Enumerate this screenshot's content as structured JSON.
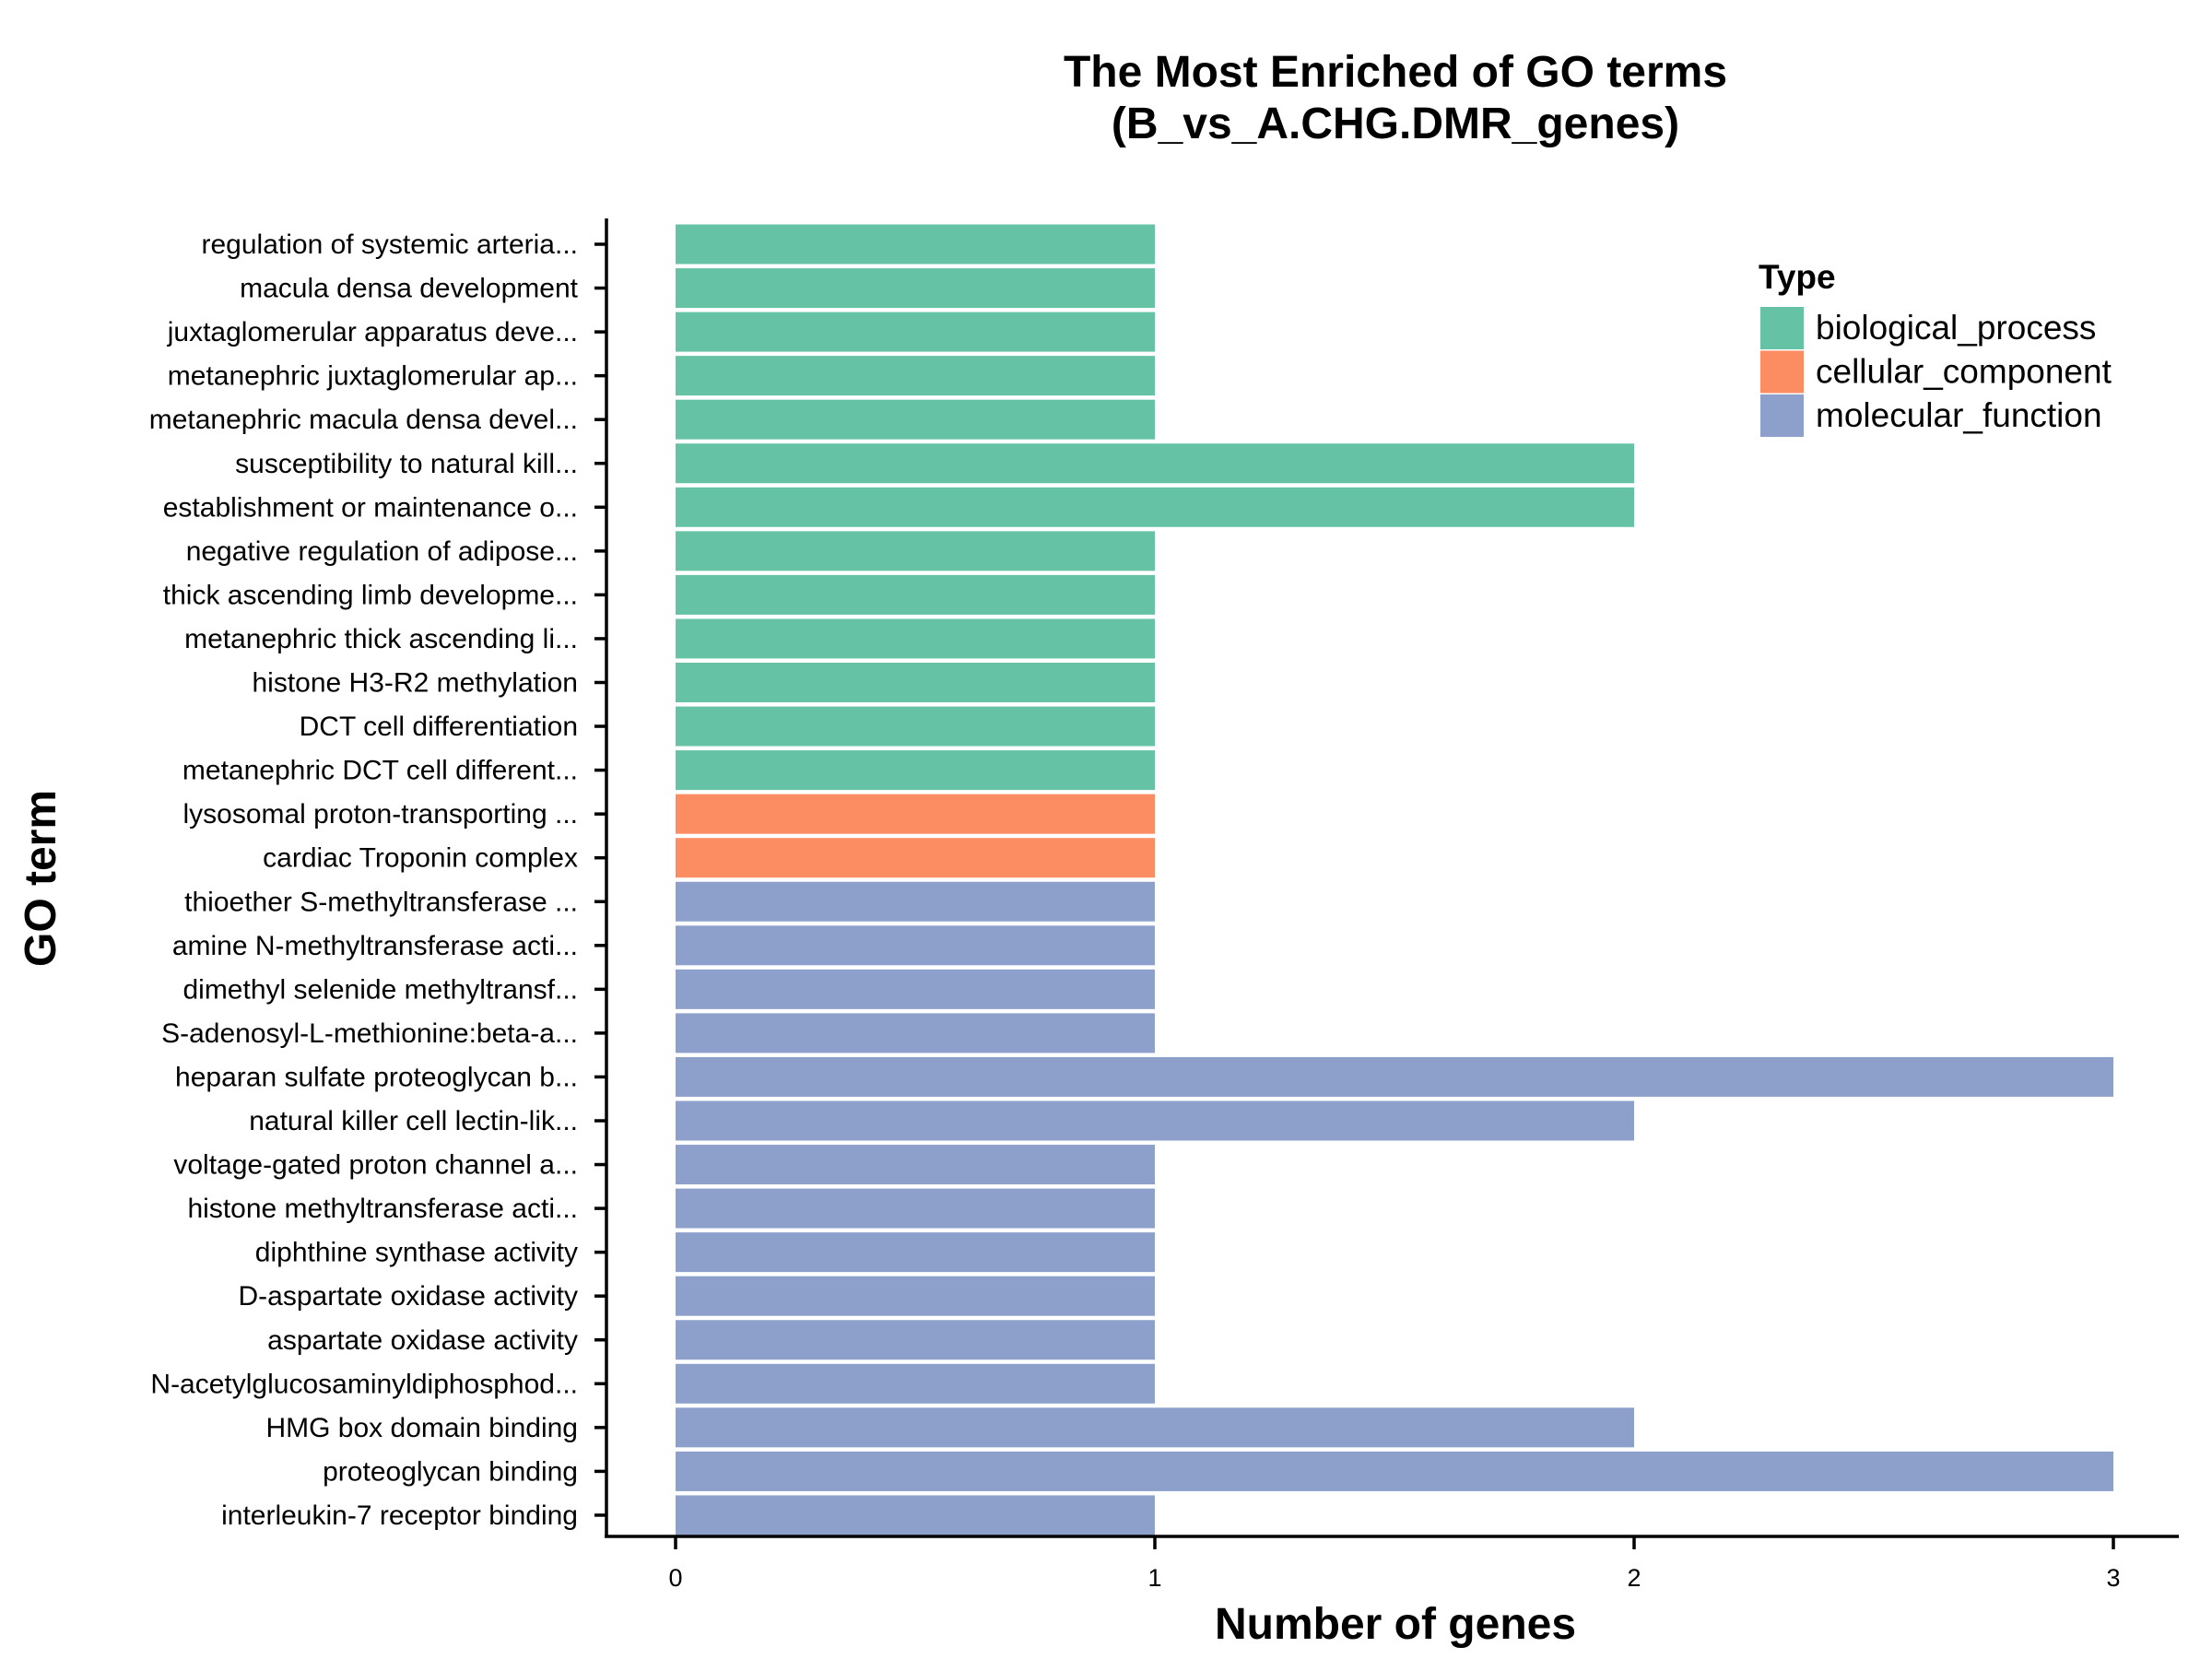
{
  "chart_data": {
    "type": "bar",
    "orientation": "horizontal",
    "title_line1": "The Most Enriched of GO terms",
    "title_line2": "(B_vs_A.CHG.DMR_genes)",
    "xlabel": "Number of genes",
    "ylabel": "GO term",
    "xlim": [
      0,
      3
    ],
    "xticks": [
      "0",
      "1",
      "2",
      "3"
    ],
    "grid": false,
    "legend": {
      "title": "Type",
      "placement": "top-right",
      "entries": [
        {
          "name": "biological_process",
          "color": "#66c2a5"
        },
        {
          "name": "cellular_component",
          "color": "#fc8d62"
        },
        {
          "name": "molecular_function",
          "color": "#8da0cb"
        }
      ]
    },
    "bars": [
      {
        "label": "regulation of systemic arteria...",
        "value": 1,
        "type": "biological_process"
      },
      {
        "label": "macula densa development",
        "value": 1,
        "type": "biological_process"
      },
      {
        "label": "juxtaglomerular apparatus deve...",
        "value": 1,
        "type": "biological_process"
      },
      {
        "label": "metanephric juxtaglomerular ap...",
        "value": 1,
        "type": "biological_process"
      },
      {
        "label": "metanephric macula densa devel...",
        "value": 1,
        "type": "biological_process"
      },
      {
        "label": "susceptibility to natural kill...",
        "value": 2,
        "type": "biological_process"
      },
      {
        "label": "establishment or maintenance o...",
        "value": 2,
        "type": "biological_process"
      },
      {
        "label": "negative regulation of adipose...",
        "value": 1,
        "type": "biological_process"
      },
      {
        "label": "thick ascending limb developme...",
        "value": 1,
        "type": "biological_process"
      },
      {
        "label": "metanephric thick ascending li...",
        "value": 1,
        "type": "biological_process"
      },
      {
        "label": "histone H3-R2 methylation",
        "value": 1,
        "type": "biological_process"
      },
      {
        "label": "DCT cell differentiation",
        "value": 1,
        "type": "biological_process"
      },
      {
        "label": "metanephric DCT cell different...",
        "value": 1,
        "type": "biological_process"
      },
      {
        "label": "lysosomal proton-transporting ...",
        "value": 1,
        "type": "cellular_component"
      },
      {
        "label": "cardiac Troponin complex",
        "value": 1,
        "type": "cellular_component"
      },
      {
        "label": "thioether S-methyltransferase ...",
        "value": 1,
        "type": "molecular_function"
      },
      {
        "label": "amine N-methyltransferase acti...",
        "value": 1,
        "type": "molecular_function"
      },
      {
        "label": "dimethyl selenide methyltransf...",
        "value": 1,
        "type": "molecular_function"
      },
      {
        "label": "S-adenosyl-L-methionine:beta-a...",
        "value": 1,
        "type": "molecular_function"
      },
      {
        "label": "heparan sulfate proteoglycan b...",
        "value": 3,
        "type": "molecular_function"
      },
      {
        "label": "natural killer cell lectin-lik...",
        "value": 2,
        "type": "molecular_function"
      },
      {
        "label": "voltage-gated proton channel a...",
        "value": 1,
        "type": "molecular_function"
      },
      {
        "label": "histone methyltransferase acti...",
        "value": 1,
        "type": "molecular_function"
      },
      {
        "label": "diphthine synthase activity",
        "value": 1,
        "type": "molecular_function"
      },
      {
        "label": "D-aspartate oxidase activity",
        "value": 1,
        "type": "molecular_function"
      },
      {
        "label": "aspartate oxidase activity",
        "value": 1,
        "type": "molecular_function"
      },
      {
        "label": "N-acetylglucosaminyldiphosphod...",
        "value": 1,
        "type": "molecular_function"
      },
      {
        "label": "HMG box domain binding",
        "value": 2,
        "type": "molecular_function"
      },
      {
        "label": "proteoglycan binding",
        "value": 3,
        "type": "molecular_function"
      },
      {
        "label": "interleukin-7 receptor binding",
        "value": 1,
        "type": "molecular_function"
      }
    ]
  }
}
